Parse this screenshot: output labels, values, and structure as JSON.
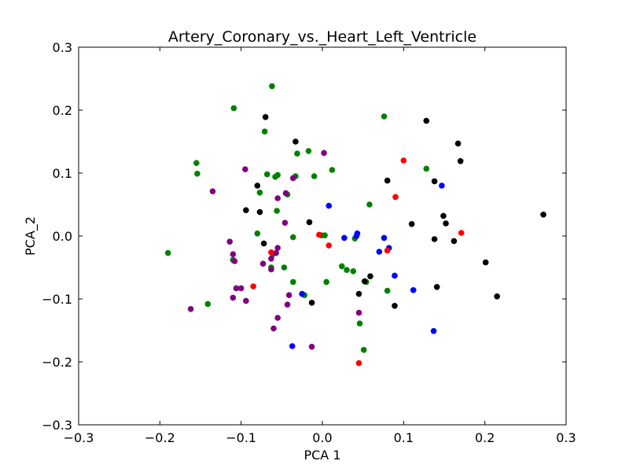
{
  "chart_data": {
    "type": "scatter",
    "title": "Artery_Coronary_vs._Heart_Left_Ventricle",
    "xlabel": "PCA 1",
    "ylabel": "PCA_2",
    "xlim": [
      -0.3,
      0.3
    ],
    "ylim": [
      -0.3,
      0.3
    ],
    "xticks": [
      -0.3,
      -0.2,
      -0.1,
      0.0,
      0.1,
      0.2,
      0.3
    ],
    "yticks": [
      -0.3,
      -0.2,
      -0.1,
      0.0,
      0.1,
      0.2,
      0.3
    ],
    "xtick_labels": [
      "−0.3",
      "−0.2",
      "−0.1",
      "0.0",
      "0.1",
      "0.2",
      "0.3"
    ],
    "ytick_labels": [
      "−0.3",
      "−0.2",
      "−0.1",
      "0.0",
      "0.1",
      "0.2",
      "0.3"
    ],
    "grid": false,
    "legend": false,
    "series": [
      {
        "color": "#008000",
        "points": [
          [
            -0.062,
            0.238
          ],
          [
            -0.109,
            0.203
          ],
          [
            0.076,
            0.19
          ],
          [
            -0.071,
            0.166
          ],
          [
            -0.155,
            0.116
          ],
          [
            -0.154,
            0.099
          ],
          [
            -0.068,
            0.098
          ],
          [
            -0.055,
            0.097
          ],
          [
            -0.058,
            0.094
          ],
          [
            -0.033,
            0.095
          ],
          [
            -0.031,
            0.131
          ],
          [
            -0.017,
            0.135
          ],
          [
            0.012,
            0.105
          ],
          [
            -0.01,
            0.095
          ],
          [
            0.128,
            0.107
          ],
          [
            -0.077,
            0.069
          ],
          [
            -0.043,
            0.066
          ],
          [
            -0.056,
            0.04
          ],
          [
            0.058,
            0.05
          ],
          [
            -0.08,
            0.004
          ],
          [
            -0.036,
            -0.002
          ],
          [
            -0.001,
            0.001
          ],
          [
            0.003,
            0.001
          ],
          [
            0.04,
            -0.004
          ],
          [
            -0.19,
            -0.027
          ],
          [
            -0.11,
            -0.038
          ],
          [
            -0.061,
            -0.029
          ],
          [
            -0.063,
            -0.05
          ],
          [
            -0.047,
            -0.05
          ],
          [
            0.024,
            -0.048
          ],
          [
            0.03,
            -0.054
          ],
          [
            0.038,
            -0.056
          ],
          [
            -0.036,
            -0.073
          ],
          [
            0.005,
            -0.073
          ],
          [
            0.054,
            -0.073
          ],
          [
            -0.022,
            -0.094
          ],
          [
            -0.141,
            -0.108
          ],
          [
            0.08,
            -0.087
          ],
          [
            0.046,
            -0.139
          ],
          [
            0.051,
            -0.181
          ]
        ]
      },
      {
        "color": "#000000",
        "points": [
          [
            -0.07,
            0.189
          ],
          [
            -0.033,
            0.15
          ],
          [
            0.128,
            0.183
          ],
          [
            0.167,
            0.147
          ],
          [
            0.17,
            0.119
          ],
          [
            -0.08,
            0.08
          ],
          [
            0.08,
            0.088
          ],
          [
            0.138,
            0.087
          ],
          [
            -0.094,
            0.041
          ],
          [
            -0.077,
            0.038
          ],
          [
            -0.016,
            0.022
          ],
          [
            0.149,
            0.032
          ],
          [
            0.152,
            0.02
          ],
          [
            0.11,
            0.019
          ],
          [
            0.272,
            0.034
          ],
          [
            -0.072,
            -0.012
          ],
          [
            0.138,
            -0.005
          ],
          [
            0.162,
            -0.008
          ],
          [
            0.201,
            -0.042
          ],
          [
            0.059,
            -0.064
          ],
          [
            0.052,
            -0.072
          ],
          [
            0.141,
            -0.081
          ],
          [
            0.045,
            -0.092
          ],
          [
            0.215,
            -0.096
          ],
          [
            -0.013,
            -0.106
          ],
          [
            0.089,
            -0.111
          ]
        ]
      },
      {
        "color": "#800080",
        "points": [
          [
            0.002,
            0.132
          ],
          [
            -0.095,
            0.106
          ],
          [
            -0.135,
            0.071
          ],
          [
            -0.036,
            0.092
          ],
          [
            -0.045,
            0.068
          ],
          [
            -0.055,
            0.06
          ],
          [
            -0.046,
            0.021
          ],
          [
            -0.114,
            -0.009
          ],
          [
            -0.11,
            -0.029
          ],
          [
            -0.055,
            -0.019
          ],
          [
            -0.057,
            -0.027
          ],
          [
            -0.063,
            -0.036
          ],
          [
            -0.108,
            -0.04
          ],
          [
            -0.073,
            -0.044
          ],
          [
            -0.063,
            -0.053
          ],
          [
            -0.106,
            -0.083
          ],
          [
            -0.1,
            -0.083
          ],
          [
            -0.041,
            -0.094
          ],
          [
            -0.11,
            -0.098
          ],
          [
            -0.094,
            -0.103
          ],
          [
            -0.043,
            -0.109
          ],
          [
            0.045,
            -0.122
          ],
          [
            -0.162,
            -0.116
          ],
          [
            -0.055,
            -0.13
          ],
          [
            -0.06,
            -0.147
          ],
          [
            -0.013,
            -0.176
          ]
        ]
      },
      {
        "color": "#0000ff",
        "points": [
          [
            0.147,
            0.08
          ],
          [
            0.008,
            0.048
          ],
          [
            0.027,
            -0.003
          ],
          [
            0.043,
            0.004
          ],
          [
            0.042,
            0.0
          ],
          [
            0.076,
            -0.003
          ],
          [
            0.082,
            -0.019
          ],
          [
            0.07,
            -0.025
          ],
          [
            0.089,
            -0.063
          ],
          [
            0.112,
            -0.086
          ],
          [
            -0.025,
            -0.092
          ],
          [
            -0.037,
            -0.175
          ],
          [
            0.137,
            -0.151
          ]
        ]
      },
      {
        "color": "#ff0000",
        "points": [
          [
            0.1,
            0.12
          ],
          [
            0.09,
            0.062
          ],
          [
            0.171,
            0.005
          ],
          [
            -0.004,
            0.002
          ],
          [
            0.008,
            -0.015
          ],
          [
            0.08,
            -0.023
          ],
          [
            -0.063,
            -0.026
          ],
          [
            -0.085,
            -0.08
          ],
          [
            0.045,
            -0.202
          ]
        ]
      }
    ]
  }
}
